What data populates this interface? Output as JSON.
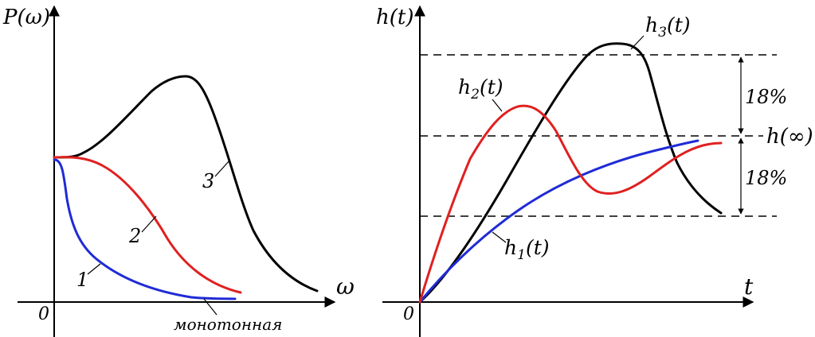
{
  "colors": {
    "black": "#000000",
    "red": "#e02020",
    "blue": "#1f2bd6"
  },
  "left_panel": {
    "y_axis_label": "P(ω)",
    "x_axis_label": "ω",
    "origin_label": "0",
    "curve_labels": [
      "1",
      "2",
      "3"
    ],
    "annotation": "монотонная"
  },
  "right_panel": {
    "y_axis_label": "h(t)",
    "x_axis_label": "t",
    "origin_label": "0",
    "h_inf_label": "h(∞)",
    "overshoot_label": "18%",
    "undershoot_label": "18%",
    "curve_labels": {
      "h1": {
        "base": "h",
        "sub": "1",
        "tail": "(t)"
      },
      "h2": {
        "base": "h",
        "sub": "2",
        "tail": "(t)"
      },
      "h3": {
        "base": "h",
        "sub": "3",
        "tail": "(t)"
      }
    }
  }
}
